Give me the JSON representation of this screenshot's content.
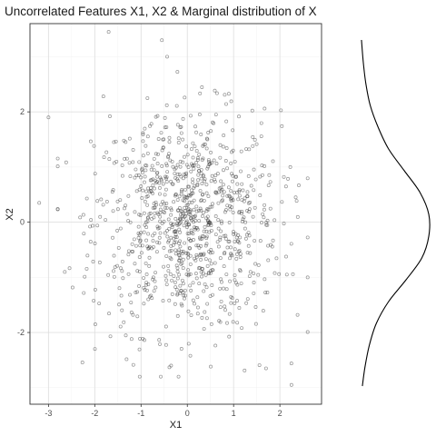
{
  "colors": {
    "point_stroke": "#3a3a3a",
    "grid_major": "#e0e0e0",
    "grid_minor": "#f2f2f2",
    "panel_border": "#333333",
    "density_line": "#000000"
  },
  "chart_data": [
    {
      "type": "scatter",
      "title": "Uncorrelated Features X1, X2 & Marginal distribution of X",
      "xlabel": "X1",
      "ylabel": "X2",
      "xlim": [
        -3.4,
        2.9
      ],
      "ylim": [
        -3.3,
        3.6
      ],
      "xticks": [
        -3,
        -2,
        -1,
        0,
        1,
        2
      ],
      "yticks": [
        -2,
        0,
        2
      ],
      "grid": true,
      "marker": "hollow circle",
      "point_count": 1000,
      "point_distribution": "bivariate standard normal, uncorrelated (mean 0, sd 1)",
      "notable_points": [
        {
          "x": -1.7,
          "y": 3.45
        },
        {
          "x": -0.55,
          "y": 3.3
        },
        {
          "x": -3.0,
          "y": 1.9
        },
        {
          "x": -3.2,
          "y": 0.35
        },
        {
          "x": 2.25,
          "y": -2.95
        },
        {
          "x": 1.7,
          "y": -2.65
        },
        {
          "x": -0.35,
          "y": -2.6
        },
        {
          "x": 2.6,
          "y": -1.0
        }
      ]
    },
    {
      "type": "line",
      "subtype": "marginal density (rotated, vertical)",
      "xlabel": "",
      "ylabel": "",
      "grid": false,
      "description_axis": "vertical axis shares X2 scale; horizontal extent is density",
      "y": [
        -2.95,
        -2.6,
        -2.2,
        -1.8,
        -1.4,
        -1.0,
        -0.6,
        -0.2,
        0.2,
        0.6,
        1.0,
        1.4,
        1.8,
        2.2,
        2.6,
        3.0,
        3.4
      ],
      "density": [
        0.01,
        0.025,
        0.05,
        0.09,
        0.16,
        0.26,
        0.35,
        0.39,
        0.39,
        0.34,
        0.25,
        0.16,
        0.1,
        0.055,
        0.03,
        0.015,
        0.005
      ]
    }
  ]
}
